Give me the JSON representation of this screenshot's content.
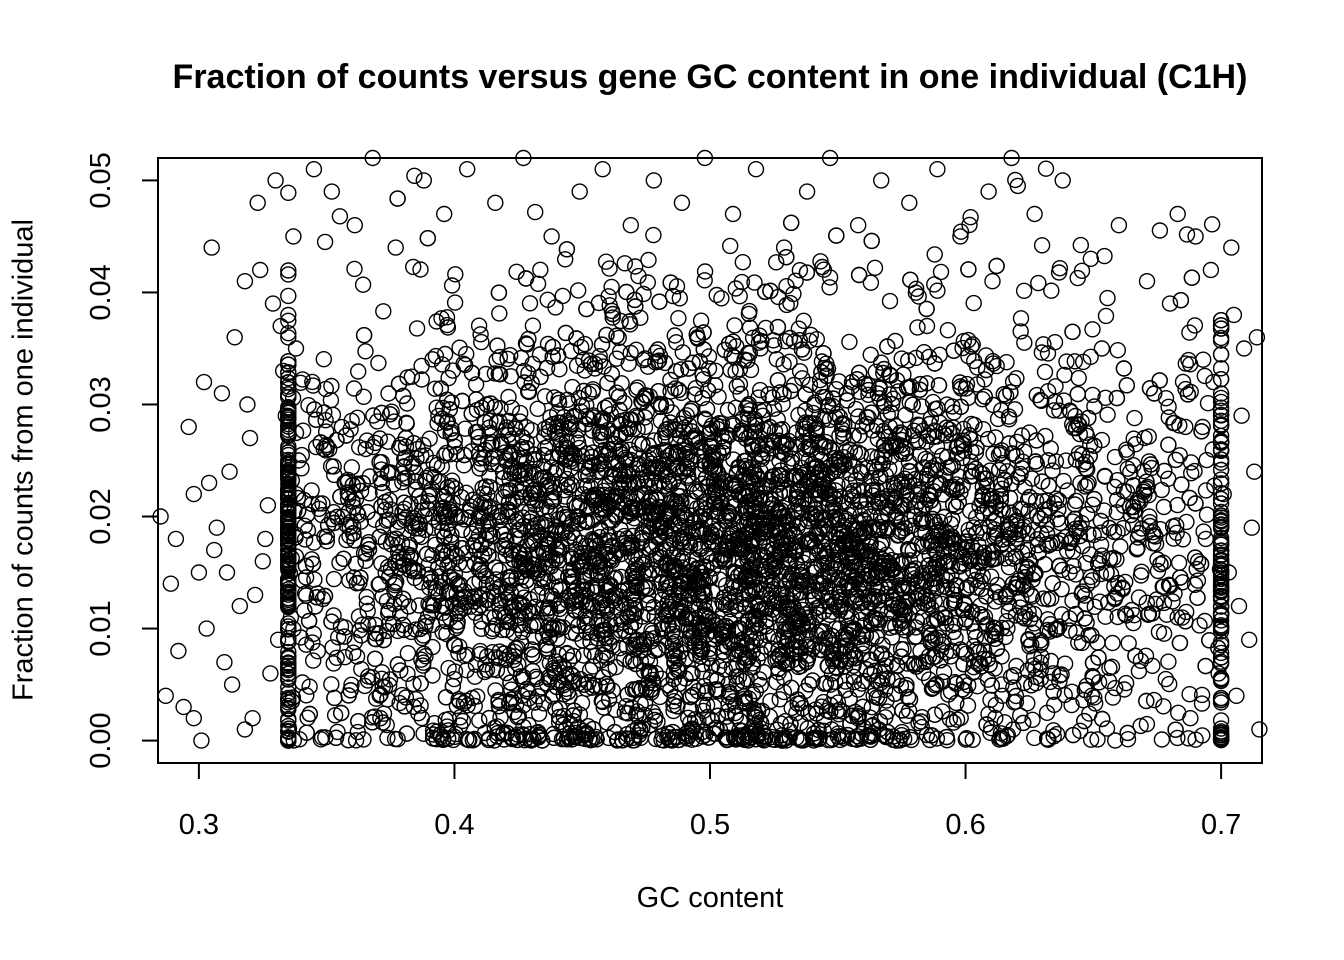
{
  "chart_data": {
    "type": "scatter",
    "title": "Fraction of counts versus gene GC content in one individual (C1H)",
    "xlabel": "GC content",
    "ylabel": "Fraction of counts from one individual",
    "xlim": [
      0.284,
      0.716
    ],
    "ylim": [
      -0.002,
      0.052
    ],
    "xticks": [
      0.3,
      0.4,
      0.5,
      0.6,
      0.7
    ],
    "xtick_labels": [
      "0.3",
      "0.4",
      "0.5",
      "0.6",
      "0.7"
    ],
    "yticks": [
      0.0,
      0.01,
      0.02,
      0.03,
      0.04,
      0.05
    ],
    "ytick_labels": [
      "0.00",
      "0.01",
      "0.02",
      "0.03",
      "0.04",
      "0.05"
    ],
    "marker": "open-circle",
    "marker_color": "#000000",
    "grid": false,
    "legend": "none",
    "series": [
      {
        "points": [
          [
            0.285,
            0.02
          ],
          [
            0.287,
            0.004
          ],
          [
            0.289,
            0.014
          ],
          [
            0.291,
            0.018
          ],
          [
            0.292,
            0.008
          ],
          [
            0.294,
            0.003
          ],
          [
            0.296,
            0.028
          ],
          [
            0.298,
            0.022
          ],
          [
            0.3,
            0.015
          ],
          [
            0.302,
            0.032
          ],
          [
            0.303,
            0.01
          ],
          [
            0.305,
            0.044
          ],
          [
            0.307,
            0.019
          ],
          [
            0.309,
            0.031
          ],
          [
            0.31,
            0.007
          ],
          [
            0.312,
            0.024
          ],
          [
            0.314,
            0.036
          ],
          [
            0.316,
            0.012
          ],
          [
            0.318,
            0.041
          ],
          [
            0.32,
            0.027
          ],
          [
            0.321,
            0.002
          ],
          [
            0.323,
            0.048
          ],
          [
            0.325,
            0.016
          ],
          [
            0.327,
            0.021
          ],
          [
            0.329,
            0.039
          ],
          [
            0.331,
            0.009
          ],
          [
            0.333,
            0.033
          ],
          [
            0.335,
            0.0
          ],
          [
            0.337,
            0.045
          ],
          [
            0.339,
            0.025
          ],
          [
            0.301,
            0.0
          ],
          [
            0.304,
            0.023
          ],
          [
            0.311,
            0.015
          ],
          [
            0.318,
            0.001
          ],
          [
            0.322,
            0.013
          ],
          [
            0.326,
            0.018
          ],
          [
            0.33,
            0.05
          ],
          [
            0.334,
            0.029
          ],
          [
            0.336,
            0.011
          ],
          [
            0.338,
            0.035
          ],
          [
            0.298,
            0.002
          ],
          [
            0.306,
            0.017
          ],
          [
            0.313,
            0.005
          ],
          [
            0.319,
            0.03
          ],
          [
            0.324,
            0.042
          ],
          [
            0.328,
            0.006
          ],
          [
            0.332,
            0.037
          ],
          [
            0.338,
            0.022
          ],
          [
            0.345,
            0.051
          ],
          [
            0.352,
            0.049
          ],
          [
            0.361,
            0.046
          ],
          [
            0.368,
            0.052
          ],
          [
            0.377,
            0.044
          ],
          [
            0.388,
            0.05
          ],
          [
            0.396,
            0.047
          ],
          [
            0.405,
            0.051
          ],
          [
            0.416,
            0.048
          ],
          [
            0.427,
            0.052
          ],
          [
            0.438,
            0.045
          ],
          [
            0.449,
            0.049
          ],
          [
            0.458,
            0.051
          ],
          [
            0.469,
            0.046
          ],
          [
            0.478,
            0.05
          ],
          [
            0.489,
            0.048
          ],
          [
            0.498,
            0.052
          ],
          [
            0.509,
            0.047
          ],
          [
            0.518,
            0.051
          ],
          [
            0.529,
            0.044
          ],
          [
            0.538,
            0.049
          ],
          [
            0.547,
            0.052
          ],
          [
            0.558,
            0.046
          ],
          [
            0.567,
            0.05
          ],
          [
            0.578,
            0.048
          ],
          [
            0.589,
            0.051
          ],
          [
            0.598,
            0.045
          ],
          [
            0.609,
            0.049
          ],
          [
            0.618,
            0.052
          ],
          [
            0.627,
            0.047
          ],
          [
            0.638,
            0.05
          ],
          [
            0.649,
            0.043
          ],
          [
            0.66,
            0.046
          ],
          [
            0.671,
            0.041
          ],
          [
            0.683,
            0.047
          ],
          [
            0.69,
            0.045
          ],
          [
            0.696,
            0.042
          ],
          [
            0.704,
            0.044
          ],
          [
            0.709,
            0.035
          ],
          [
            0.714,
            0.036
          ],
          [
            0.712,
            0.019
          ],
          [
            0.715,
            0.001
          ],
          [
            0.7,
            0.026
          ],
          [
            0.703,
            0.015
          ],
          [
            0.708,
            0.029
          ],
          [
            0.711,
            0.009
          ],
          [
            0.706,
            0.004
          ],
          [
            0.713,
            0.024
          ],
          [
            0.694,
            0.018
          ],
          [
            0.697,
            0.032
          ],
          [
            0.699,
            0.006
          ],
          [
            0.701,
            0.022
          ],
          [
            0.705,
            0.038
          ],
          [
            0.707,
            0.012
          ],
          [
            0.686,
            0.028
          ],
          [
            0.688,
            0.002
          ],
          [
            0.691,
            0.016
          ],
          [
            0.693,
            0.034
          ],
          [
            0.68,
            0.039
          ],
          [
            0.683,
            0.011
          ]
        ]
      }
    ],
    "generated_density": {
      "count": 6500,
      "seed": 17,
      "x_center": 0.505,
      "x_sd": 0.095,
      "y_center": 0.017,
      "y_sd": 0.01
    }
  }
}
